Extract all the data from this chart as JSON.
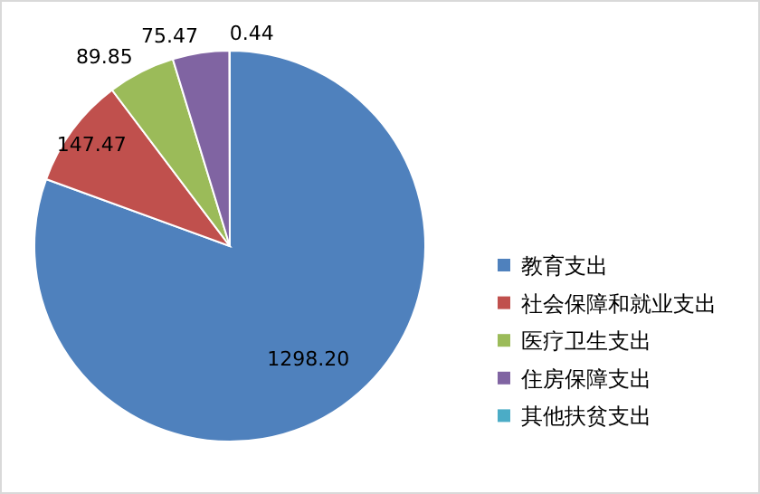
{
  "chart_data": {
    "type": "pie",
    "categories": [
      "教育支出",
      "社会保障和就业支出",
      "医疗卫生支出",
      "住房保障支出",
      "其他扶贫支出"
    ],
    "values": [
      1298.2,
      147.47,
      89.85,
      75.47,
      0.44
    ],
    "colors": [
      "#4f81bd",
      "#c0504d",
      "#9bbb59",
      "#8064a2",
      "#4bacc6"
    ],
    "value_labels": [
      "1298.20",
      "147.47",
      "89.85",
      "75.47",
      "0.44"
    ],
    "legend": "right"
  }
}
